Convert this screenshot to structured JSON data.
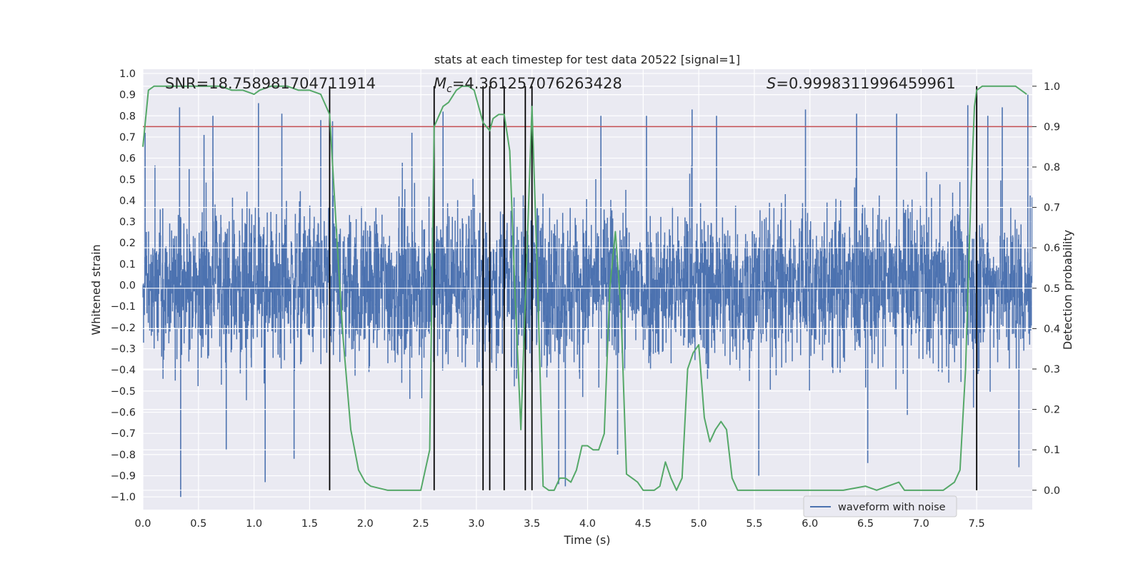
{
  "chart_data": {
    "type": "line",
    "title": "stats at each timestep for test data 20522 [signal=1]",
    "xlabel": "Time (s)",
    "ylabel_left": "Whitened strain",
    "ylabel_right": "Detection probability",
    "xlim": [
      0.0,
      8.0
    ],
    "ylim_left": [
      -1.06,
      1.02
    ],
    "ylim_right": [
      -0.048,
      1.042
    ],
    "x_ticks": [
      "0.0",
      "0.5",
      "1.0",
      "1.5",
      "2.0",
      "2.5",
      "3.0",
      "3.5",
      "4.0",
      "4.5",
      "5.0",
      "5.5",
      "6.0",
      "6.5",
      "7.0",
      "7.5"
    ],
    "y_ticks_left": [
      "1.0",
      "0.9",
      "0.8",
      "0.7",
      "0.6",
      "0.5",
      "0.4",
      "0.3",
      "0.2",
      "0.1",
      "0.0",
      "−0.1",
      "−0.2",
      "−0.3",
      "−0.4",
      "−0.5",
      "−0.6",
      "−0.7",
      "−0.8",
      "−0.9",
      "−1.0"
    ],
    "y_ticks_right": [
      "1.0",
      "0.9",
      "0.8",
      "0.7",
      "0.6",
      "0.5",
      "0.4",
      "0.3",
      "0.2",
      "0.1",
      "0.0"
    ],
    "annotations": {
      "snr": "SNR=18.758981704711914",
      "mc_symbol": "M",
      "mc_sub": "c",
      "mc_value": "=4.361257076263428",
      "s_symbol": "S",
      "s_value": "=0.9998311996459961"
    },
    "legend": {
      "label": "waveform with noise",
      "location": "lower-right"
    },
    "threshold": 0.9,
    "vlines": [
      1.68,
      2.62,
      3.06,
      3.12,
      3.25,
      3.44,
      3.5,
      7.5
    ],
    "series": [
      {
        "name": "waveform with noise",
        "color": "#4c72b0",
        "amplitude_typical": 0.45,
        "peaks": [
          {
            "t": 0.02,
            "v": 0.72
          },
          {
            "t": 0.33,
            "v": 0.84
          },
          {
            "t": 0.34,
            "v": -1.0
          },
          {
            "t": 0.55,
            "v": 0.71
          },
          {
            "t": 0.63,
            "v": 0.8
          },
          {
            "t": 0.75,
            "v": -0.78
          },
          {
            "t": 1.04,
            "v": 0.86
          },
          {
            "t": 1.1,
            "v": -0.93
          },
          {
            "t": 1.25,
            "v": 0.81
          },
          {
            "t": 1.36,
            "v": -0.82
          },
          {
            "t": 1.6,
            "v": 0.78
          },
          {
            "t": 2.42,
            "v": 0.72
          },
          {
            "t": 2.7,
            "v": 0.82
          },
          {
            "t": 3.06,
            "v": -0.82
          },
          {
            "t": 3.5,
            "v": 0.86
          },
          {
            "t": 3.74,
            "v": -0.94
          },
          {
            "t": 3.8,
            "v": -0.95
          },
          {
            "t": 4.12,
            "v": 0.8
          },
          {
            "t": 4.27,
            "v": -0.8
          },
          {
            "t": 4.53,
            "v": 0.8
          },
          {
            "t": 4.94,
            "v": 0.83
          },
          {
            "t": 5.16,
            "v": 0.8
          },
          {
            "t": 5.54,
            "v": -0.9
          },
          {
            "t": 5.96,
            "v": 0.83
          },
          {
            "t": 6.42,
            "v": 0.81
          },
          {
            "t": 6.52,
            "v": -0.84
          },
          {
            "t": 6.78,
            "v": 0.81
          },
          {
            "t": 7.42,
            "v": 0.85
          },
          {
            "t": 7.6,
            "v": 0.8
          },
          {
            "t": 7.73,
            "v": 0.84
          },
          {
            "t": 7.88,
            "v": -0.86
          },
          {
            "t": 7.96,
            "v": 0.9
          }
        ]
      },
      {
        "name": "detection probability",
        "color": "#55a868",
        "axis": "right",
        "x": [
          0.0,
          0.05,
          0.1,
          0.2,
          0.3,
          0.5,
          0.7,
          0.8,
          0.9,
          1.0,
          1.05,
          1.15,
          1.3,
          1.4,
          1.5,
          1.6,
          1.68,
          1.75,
          1.8,
          1.87,
          1.94,
          2.0,
          2.05,
          2.2,
          2.3,
          2.4,
          2.5,
          2.58,
          2.62,
          2.7,
          2.75,
          2.82,
          2.87,
          2.93,
          2.98,
          3.02,
          3.06,
          3.12,
          3.15,
          3.2,
          3.25,
          3.3,
          3.35,
          3.4,
          3.45,
          3.5,
          3.55,
          3.6,
          3.65,
          3.7,
          3.75,
          3.8,
          3.85,
          3.9,
          3.95,
          4.0,
          4.05,
          4.1,
          4.15,
          4.2,
          4.25,
          4.3,
          4.35,
          4.4,
          4.45,
          4.5,
          4.55,
          4.6,
          4.65,
          4.7,
          4.75,
          4.8,
          4.85,
          4.9,
          4.95,
          5.0,
          5.05,
          5.1,
          5.15,
          5.2,
          5.25,
          5.3,
          5.35,
          5.4,
          5.45,
          5.5,
          5.6,
          5.8,
          6.0,
          6.3,
          6.5,
          6.6,
          6.7,
          6.8,
          6.85,
          6.9,
          7.0,
          7.1,
          7.2,
          7.3,
          7.35,
          7.4,
          7.45,
          7.48,
          7.5,
          7.55,
          7.6,
          7.7,
          7.85,
          7.9,
          7.95
        ],
        "y": [
          0.85,
          0.99,
          1.0,
          1.0,
          1.0,
          1.0,
          1.0,
          0.99,
          0.99,
          0.98,
          0.99,
          1.0,
          1.0,
          0.99,
          0.99,
          0.98,
          0.93,
          0.6,
          0.38,
          0.15,
          0.05,
          0.02,
          0.01,
          0.0,
          0.0,
          0.0,
          0.0,
          0.1,
          0.9,
          0.95,
          0.96,
          0.99,
          1.0,
          1.0,
          0.99,
          0.95,
          0.91,
          0.89,
          0.92,
          0.93,
          0.93,
          0.84,
          0.47,
          0.15,
          0.55,
          0.95,
          0.52,
          0.01,
          0.0,
          0.0,
          0.03,
          0.03,
          0.02,
          0.05,
          0.11,
          0.11,
          0.1,
          0.1,
          0.14,
          0.5,
          0.64,
          0.45,
          0.04,
          0.03,
          0.02,
          0.0,
          0.0,
          0.0,
          0.01,
          0.07,
          0.03,
          0.0,
          0.03,
          0.3,
          0.34,
          0.36,
          0.18,
          0.12,
          0.15,
          0.17,
          0.15,
          0.03,
          0.0,
          0.0,
          0.0,
          0.0,
          0.0,
          0.0,
          0.0,
          0.0,
          0.01,
          0.0,
          0.01,
          0.02,
          0.0,
          0.0,
          0.0,
          0.0,
          0.0,
          0.02,
          0.05,
          0.3,
          0.75,
          0.95,
          0.99,
          1.0,
          1.0,
          1.0,
          1.0,
          0.99,
          0.98
        ]
      }
    ]
  },
  "colors": {
    "axes_bg": "#eaeaf2",
    "grid": "#ffffff",
    "strain": "#4c72b0",
    "probability": "#55a868",
    "threshold": "#c44e52",
    "vline": "#000000"
  }
}
